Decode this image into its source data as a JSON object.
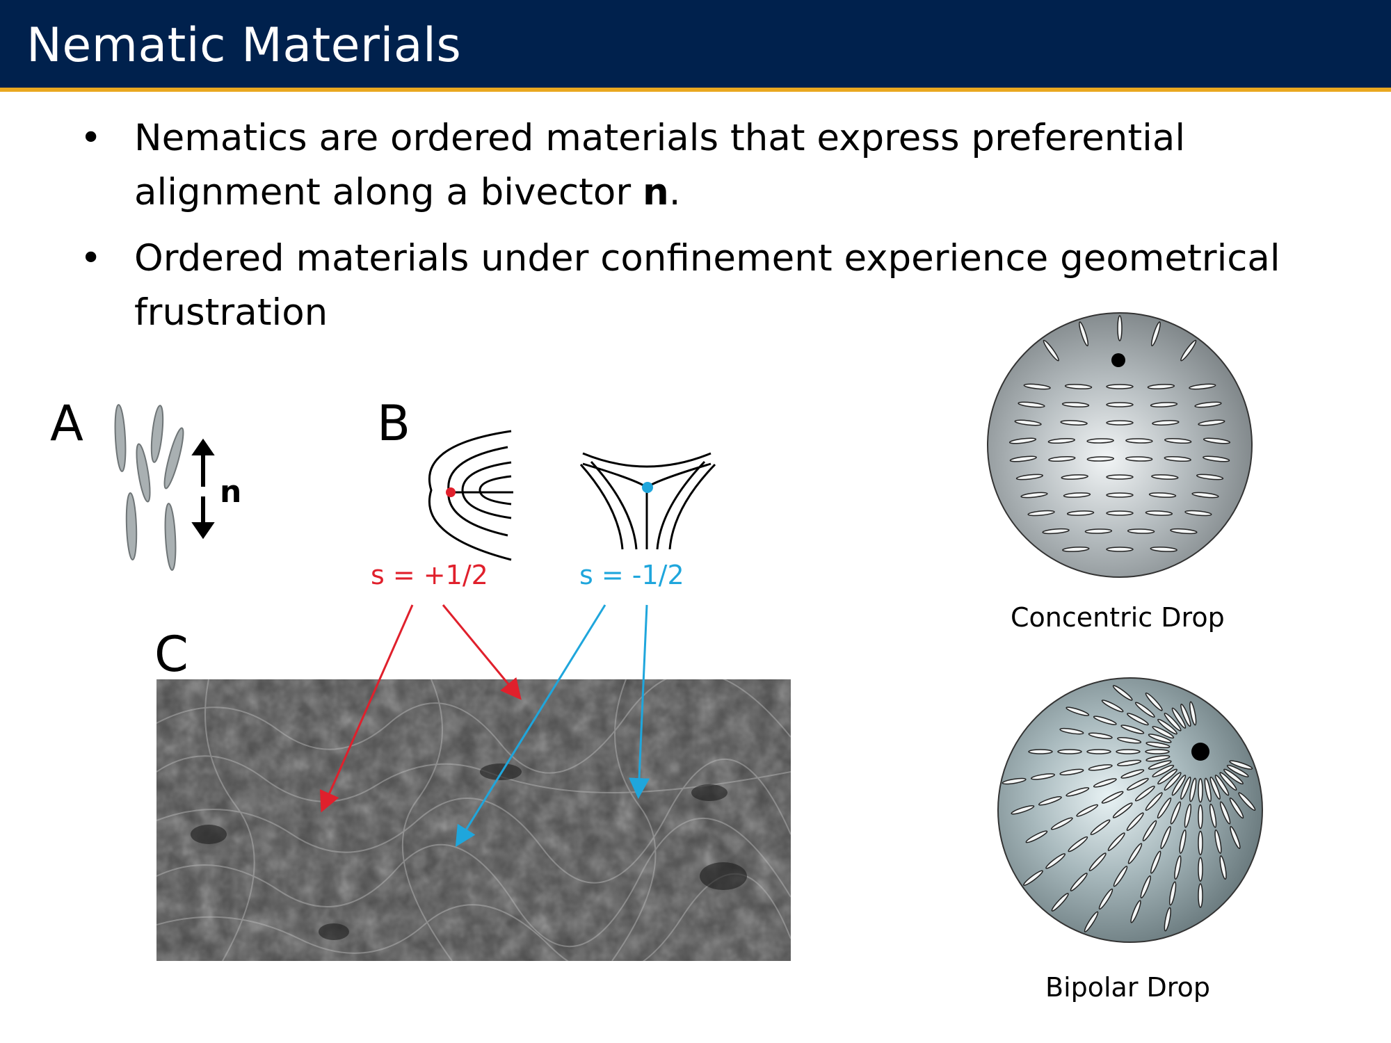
{
  "slide": {
    "title": "Nematic Materials",
    "bullets": [
      {
        "text": "Nematics are ordered materials that express preferential alignment along a bivector ",
        "bold": "n",
        "tail": "."
      },
      {
        "text": "Ordered materials under confinement experience geometrical frustration",
        "bold": "",
        "tail": ""
      }
    ],
    "bullet_symbol": "•"
  },
  "figure": {
    "panel_a": {
      "label": "A",
      "director_label": "n"
    },
    "panel_b": {
      "label": "B",
      "plus_half": "s = +1/2",
      "minus_half": "s = -1/2"
    },
    "panel_c": {
      "label": "C"
    },
    "drops": {
      "concentric": "Concentric Drop",
      "bipolar": "Bipolar Drop"
    }
  },
  "colors": {
    "header_bg": "#00214d",
    "header_accent": "#e9a820",
    "plus_defect": "#e0202c",
    "minus_defect": "#1fa6dc"
  }
}
